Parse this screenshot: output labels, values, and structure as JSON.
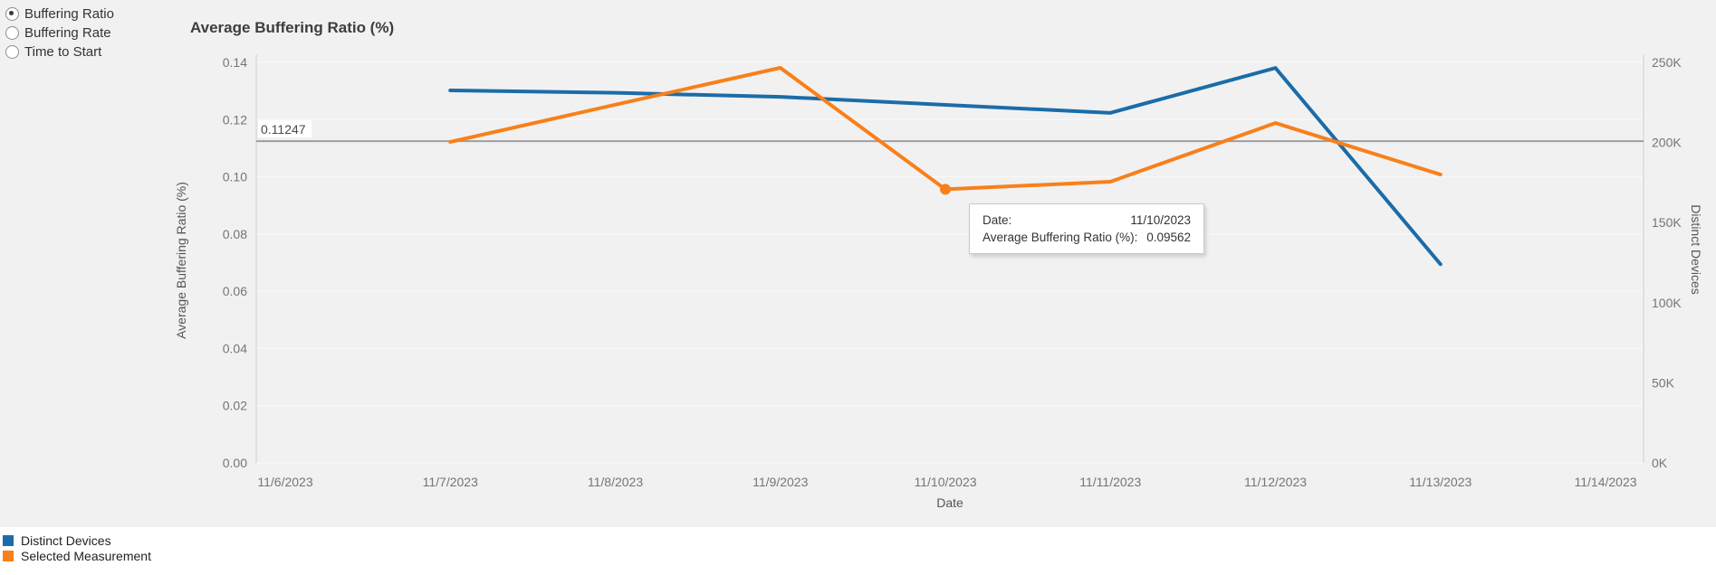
{
  "controls": {
    "metric_options": [
      {
        "label": "Buffering Ratio",
        "selected": true
      },
      {
        "label": "Buffering Rate",
        "selected": false
      },
      {
        "label": "Time to Start",
        "selected": false
      }
    ]
  },
  "chart_data": {
    "type": "line",
    "title": "Average Buffering Ratio (%)",
    "categories": [
      "11/6/2023",
      "11/7/2023",
      "11/8/2023",
      "11/9/2023",
      "11/10/2023",
      "11/11/2023",
      "11/12/2023",
      "11/13/2023",
      "11/14/2023"
    ],
    "series": [
      {
        "name": "Distinct Devices",
        "color": "#1b6ca8",
        "axis": "right",
        "x": [
          "11/7/2023",
          "11/8/2023",
          "11/9/2023",
          "11/10/2023",
          "11/11/2023",
          "11/12/2023",
          "11/13/2023"
        ],
        "values": [
          232500,
          231000,
          228500,
          223500,
          218500,
          246500,
          124000
        ]
      },
      {
        "name": "Selected Measurement",
        "color": "#f8801a",
        "axis": "left",
        "x": [
          "11/7/2023",
          "11/8/2023",
          "11/9/2023",
          "11/10/2023",
          "11/11/2023",
          "11/12/2023",
          "11/13/2023"
        ],
        "values": [
          0.1122,
          0.1252,
          0.1381,
          0.09562,
          0.0983,
          0.1188,
          0.1008
        ]
      }
    ],
    "left_axis": {
      "label": "Average Buffering Ratio (%)",
      "min": 0,
      "max": 0.14,
      "tick_step": 0.02,
      "tick_format": "fixed2"
    },
    "right_axis": {
      "label": "Distinct Devices",
      "min": 0,
      "max": 250000,
      "tick_step": 50000,
      "tick_format": "K"
    },
    "x_axis": {
      "label": "Date"
    },
    "reference_line": {
      "value": 0.11247,
      "label": "0.11247",
      "axis": "left"
    },
    "highlight_point": {
      "series": "Selected Measurement",
      "x": "11/10/2023",
      "value": 0.09562
    },
    "legend_position": "bottom-left",
    "grid": "horizontal"
  },
  "tooltip": {
    "rows": [
      {
        "label": "Date:",
        "value": "11/10/2023"
      },
      {
        "label": "Average Buffering Ratio (%):",
        "value": "0.09562"
      }
    ]
  },
  "legend": {
    "items": [
      {
        "label": "Distinct Devices",
        "color": "#1b6ca8"
      },
      {
        "label": "Selected Measurement",
        "color": "#f8801a"
      }
    ]
  },
  "colors": {
    "panel_background": "#f1f1f2",
    "blue_series": "#1b6ca8",
    "orange_series": "#f8801a",
    "reference_line": "#9e9e9e",
    "axis_line": "#cfcfcf",
    "tick_text": "#757575"
  }
}
